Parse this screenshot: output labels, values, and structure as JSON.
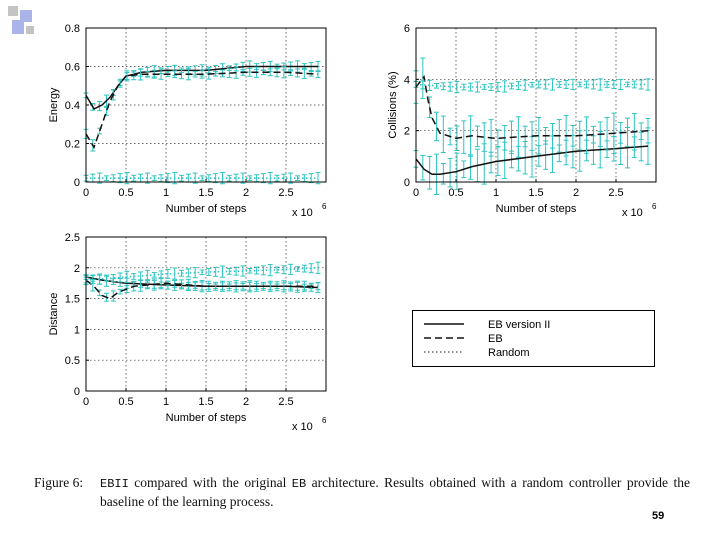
{
  "colors": {
    "ebii": "#111111",
    "eb": "#111111",
    "random": "#111111",
    "teal": "#2ec4c0",
    "deco_blue": "#aab4e8",
    "deco_grey": "#c4c4c4"
  },
  "chart_data": [
    {
      "type": "line",
      "id": "energy",
      "xlabel": "Number of steps",
      "x_multiplier": "x 10",
      "x_exponent": "6",
      "ylabel": "Energy",
      "xlim": [
        0,
        3
      ],
      "ylim": [
        0,
        0.8
      ],
      "xticks": [
        0,
        0.5,
        1,
        1.5,
        2,
        2.5
      ],
      "xtick_labels": [
        "0",
        "0.5",
        "1",
        "1.5",
        "2",
        "2.5"
      ],
      "yticks": [
        0,
        0.2,
        0.4,
        0.6,
        0.8
      ],
      "ytick_labels": [
        "0",
        "0.2",
        "0.4",
        "0.6",
        "0.8"
      ],
      "grid": true,
      "series": [
        {
          "name": "EB version II",
          "style": "solid",
          "x": [
            0,
            0.1,
            0.2,
            0.3,
            0.4,
            0.5,
            0.7,
            1,
            1.5,
            2,
            2.5,
            2.9
          ],
          "y": [
            0.45,
            0.38,
            0.4,
            0.44,
            0.5,
            0.55,
            0.57,
            0.58,
            0.58,
            0.6,
            0.6,
            0.6
          ]
        },
        {
          "name": "EB",
          "style": "dashed",
          "x": [
            0,
            0.1,
            0.2,
            0.3,
            0.4,
            0.5,
            0.7,
            1,
            1.5,
            2,
            2.5,
            2.9
          ],
          "y": [
            0.25,
            0.18,
            0.3,
            0.42,
            0.5,
            0.55,
            0.56,
            0.56,
            0.56,
            0.57,
            0.57,
            0.56
          ]
        },
        {
          "name": "Random",
          "style": "dotted",
          "x": [
            0,
            0.5,
            1,
            1.5,
            2,
            2.5,
            2.9
          ],
          "y": [
            0.02,
            0.02,
            0.02,
            0.02,
            0.02,
            0.02,
            0.02
          ]
        }
      ]
    },
    {
      "type": "line",
      "id": "collisions",
      "xlabel": "Number of steps",
      "x_multiplier": "x 10",
      "x_exponent": "6",
      "ylabel": "Collisions (%)",
      "xlim": [
        0,
        3
      ],
      "ylim": [
        0,
        6
      ],
      "xticks": [
        0,
        0.5,
        1,
        1.5,
        2,
        2.5
      ],
      "xtick_labels": [
        "0",
        "0.5",
        "1",
        "1.5",
        "2",
        "2.5"
      ],
      "yticks": [
        0,
        2,
        4,
        6
      ],
      "ytick_labels": [
        "0",
        "2",
        "4",
        "6"
      ],
      "grid": true,
      "series": [
        {
          "name": "EB version II",
          "style": "solid",
          "x": [
            0,
            0.1,
            0.2,
            0.3,
            0.5,
            0.7,
            1,
            1.5,
            2,
            2.5,
            2.9
          ],
          "y": [
            0.9,
            0.5,
            0.3,
            0.3,
            0.4,
            0.6,
            0.8,
            1,
            1.2,
            1.3,
            1.4
          ]
        },
        {
          "name": "EB",
          "style": "dashed",
          "x": [
            0,
            0.1,
            0.15,
            0.2,
            0.3,
            0.5,
            0.7,
            1,
            1.5,
            2,
            2.5,
            2.9
          ],
          "y": [
            3.7,
            4.1,
            3.2,
            2.5,
            1.9,
            1.7,
            1.8,
            1.7,
            1.8,
            1.8,
            1.9,
            2
          ]
        },
        {
          "name": "Random",
          "style": "dotted",
          "x": [
            0,
            0.5,
            1,
            1.5,
            2,
            2.5,
            2.9
          ],
          "y": [
            3.8,
            3.7,
            3.7,
            3.8,
            3.8,
            3.8,
            3.8
          ]
        }
      ]
    },
    {
      "type": "line",
      "id": "distance",
      "xlabel": "Number of steps",
      "x_multiplier": "x 10",
      "x_exponent": "6",
      "ylabel": "Distance",
      "xlim": [
        0,
        3
      ],
      "ylim": [
        0,
        2.5
      ],
      "xticks": [
        0,
        0.5,
        1,
        1.5,
        2,
        2.5
      ],
      "xtick_labels": [
        "0",
        "0.5",
        "1",
        "1.5",
        "2",
        "2.5"
      ],
      "yticks": [
        0,
        0.5,
        1,
        1.5,
        2,
        2.5
      ],
      "ytick_labels": [
        "0",
        "0.5",
        "1",
        "1.5",
        "2",
        "2.5"
      ],
      "grid": true,
      "series": [
        {
          "name": "EB version II",
          "style": "solid",
          "x": [
            0,
            0.2,
            0.5,
            1,
            1.5,
            2,
            2.5,
            2.9
          ],
          "y": [
            1.85,
            1.8,
            1.75,
            1.72,
            1.7,
            1.7,
            1.7,
            1.68
          ]
        },
        {
          "name": "EB",
          "style": "dashed",
          "x": [
            0,
            0.1,
            0.2,
            0.3,
            0.4,
            0.6,
            1,
            1.5,
            2,
            2.5,
            2.9
          ],
          "y": [
            1.8,
            1.7,
            1.55,
            1.5,
            1.6,
            1.7,
            1.75,
            1.7,
            1.7,
            1.7,
            1.7
          ]
        },
        {
          "name": "Random",
          "style": "dotted",
          "x": [
            0,
            0.5,
            1,
            1.5,
            2,
            2.5,
            2.9
          ],
          "y": [
            1.8,
            1.85,
            1.9,
            1.93,
            1.95,
            1.97,
            2
          ]
        }
      ]
    }
  ],
  "legend": {
    "items": [
      {
        "label": "EB version II",
        "style": "solid"
      },
      {
        "label": "EB",
        "style": "dashed"
      },
      {
        "label": "Random",
        "style": "dotted"
      }
    ]
  },
  "caption": {
    "label": "Figure 6:",
    "part1": "EBII",
    "part2": " compared with the original ",
    "part3": "EB",
    "part4": " architecture.   Results obtained with a random controller provide the baseline of the learning process."
  },
  "page_number": "59"
}
